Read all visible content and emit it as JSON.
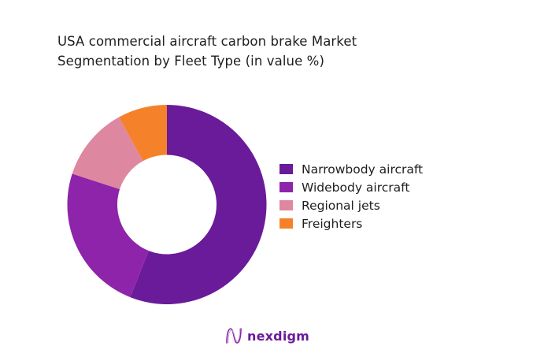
{
  "title": {
    "line1": "USA commercial aircraft carbon brake Market",
    "line2": "Segmentation by Fleet Type (in value %)"
  },
  "legend": {
    "items": [
      {
        "label": "Narrowbody aircraft",
        "color": "#6a1b9a"
      },
      {
        "label": "Widebody aircraft",
        "color": "#8e24aa"
      },
      {
        "label": "Regional jets",
        "color": "#de87a0"
      },
      {
        "label": "Freighters",
        "color": "#f5822a"
      }
    ]
  },
  "logo": {
    "text": "nexdigm",
    "icon": "nexdigm-wave-logo-icon",
    "color": "#6a1b9a"
  },
  "chart_data": {
    "type": "pie",
    "subtype": "donut",
    "title": "USA commercial aircraft carbon brake Market Segmentation by Fleet Type (in value %)",
    "categories": [
      "Narrowbody aircraft",
      "Widebody aircraft",
      "Regional jets",
      "Freighters"
    ],
    "values": [
      56,
      24,
      12,
      8
    ],
    "colors": [
      "#6a1b9a",
      "#8e24aa",
      "#de87a0",
      "#f5822a"
    ],
    "unit": "%",
    "start_angle": "12 o'clock, clockwise",
    "legend_position": "right",
    "data_labels": false
  }
}
